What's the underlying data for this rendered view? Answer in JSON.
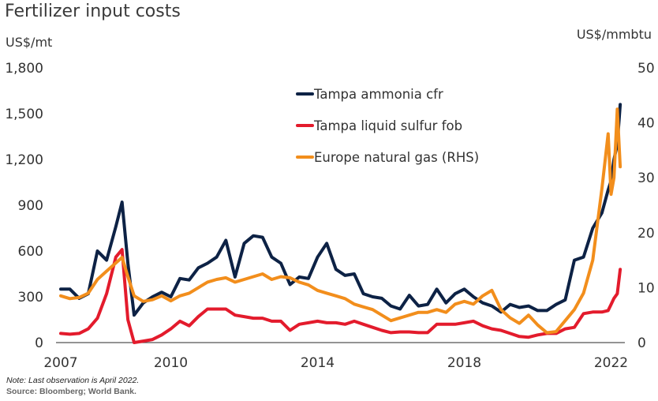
{
  "chart_data": {
    "type": "line",
    "title": "Fertilizer input costs",
    "ylabel_left": "US$/mt",
    "ylabel_right": "US$/mmbtu",
    "xlabel": "",
    "ylim_left": [
      0,
      1800
    ],
    "ylim_right": [
      0,
      50
    ],
    "yticks_left": [
      "0",
      "300",
      "600",
      "900",
      "1,200",
      "1,500",
      "1,800"
    ],
    "yticks_left_values": [
      0,
      300,
      600,
      900,
      1200,
      1500,
      1800
    ],
    "yticks_right": [
      "0",
      "10",
      "20",
      "30",
      "40",
      "50"
    ],
    "yticks_right_values": [
      0,
      10,
      20,
      30,
      40,
      50
    ],
    "xticks": [
      "2007",
      "2010",
      "2014",
      "2018",
      "2022"
    ],
    "xticks_values": [
      2007,
      2010,
      2014,
      2018,
      2022
    ],
    "xlim": [
      2007,
      2022.3
    ],
    "grid": false,
    "legend_position": "top-center",
    "x": [
      2007.0,
      2007.25,
      2007.5,
      2007.75,
      2008.0,
      2008.25,
      2008.5,
      2008.67,
      2008.83,
      2009.0,
      2009.25,
      2009.5,
      2009.75,
      2010.0,
      2010.25,
      2010.5,
      2010.75,
      2011.0,
      2011.25,
      2011.5,
      2011.75,
      2012.0,
      2012.25,
      2012.5,
      2012.75,
      2013.0,
      2013.25,
      2013.5,
      2013.75,
      2014.0,
      2014.25,
      2014.5,
      2014.75,
      2015.0,
      2015.25,
      2015.5,
      2015.75,
      2016.0,
      2016.25,
      2016.5,
      2016.75,
      2017.0,
      2017.25,
      2017.5,
      2017.75,
      2018.0,
      2018.25,
      2018.5,
      2018.75,
      2019.0,
      2019.25,
      2019.5,
      2019.75,
      2020.0,
      2020.25,
      2020.5,
      2020.75,
      2021.0,
      2021.25,
      2021.5,
      2021.75,
      2021.92,
      2022.0,
      2022.08,
      2022.17,
      2022.25
    ],
    "series": [
      {
        "name": "Tampa ammonia cfr",
        "axis": "left",
        "color": "#0d2245",
        "values": [
          350,
          350,
          290,
          320,
          600,
          540,
          760,
          920,
          520,
          180,
          260,
          300,
          330,
          300,
          420,
          410,
          490,
          520,
          560,
          670,
          430,
          650,
          700,
          690,
          560,
          520,
          380,
          430,
          420,
          560,
          650,
          480,
          440,
          450,
          320,
          300,
          290,
          240,
          220,
          310,
          240,
          250,
          350,
          260,
          320,
          350,
          300,
          260,
          240,
          200,
          250,
          230,
          240,
          210,
          210,
          250,
          280,
          540,
          560,
          750,
          850,
          1000,
          1060,
          1200,
          1300,
          1560
        ]
      },
      {
        "name": "Tampa liquid sulfur fob",
        "axis": "left",
        "color": "#e31b2c",
        "values": [
          60,
          55,
          60,
          90,
          160,
          320,
          560,
          610,
          150,
          0,
          10,
          20,
          50,
          90,
          140,
          110,
          170,
          220,
          220,
          220,
          180,
          170,
          160,
          160,
          140,
          140,
          80,
          120,
          130,
          140,
          130,
          130,
          120,
          140,
          120,
          100,
          80,
          65,
          70,
          70,
          65,
          65,
          120,
          120,
          120,
          130,
          140,
          110,
          90,
          80,
          60,
          40,
          35,
          50,
          60,
          60,
          90,
          100,
          190,
          200,
          200,
          210,
          250,
          290,
          320,
          480
        ]
      },
      {
        "name": "Europe natural gas (RHS)",
        "axis": "right",
        "color": "#f28e1c",
        "values": [
          8.5,
          8.0,
          8.2,
          9.0,
          11.5,
          13.0,
          14.5,
          15.5,
          12.0,
          8.5,
          7.5,
          7.8,
          8.5,
          7.6,
          8.5,
          9.0,
          10.0,
          11.0,
          11.5,
          11.8,
          11.0,
          11.5,
          12.0,
          12.5,
          11.5,
          12.0,
          11.8,
          11.0,
          10.5,
          9.5,
          9.0,
          8.5,
          8.0,
          7.0,
          6.5,
          6.0,
          5.0,
          4.0,
          4.5,
          5.0,
          5.5,
          5.5,
          6.0,
          5.5,
          7.0,
          7.5,
          7.0,
          8.5,
          9.5,
          6.0,
          4.5,
          3.5,
          5.0,
          3.2,
          1.8,
          2.0,
          4.0,
          6.0,
          9.0,
          15.0,
          28.0,
          38.0,
          27.0,
          30.0,
          42.5,
          32.0
        ]
      }
    ],
    "note": "Note: Last observation is April 2022.",
    "source": "Source: Bloomberg; World Bank."
  },
  "header": {
    "title": "Fertilizer input costs",
    "unit_left": "US$/mt",
    "unit_right": "US$/mmbtu"
  },
  "footer": {
    "note": "Note: Last observation is April 2022.",
    "source": "Source: Bloomberg; World Bank."
  }
}
